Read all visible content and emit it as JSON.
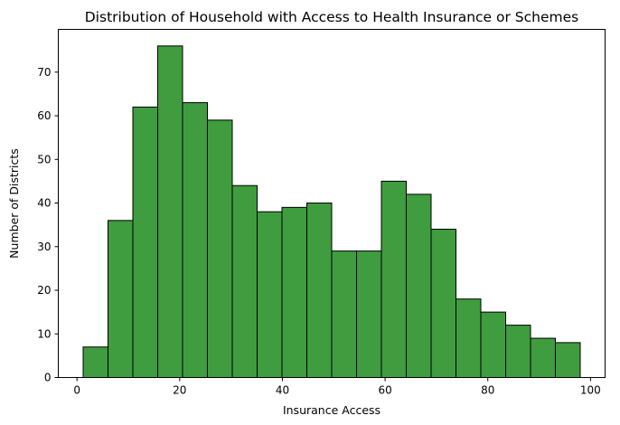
{
  "chart_data": {
    "type": "bar",
    "title": "Distribution of Household with Access to Health Insurance or Schemes",
    "xlabel": "Insurance Access",
    "ylabel": "Number of Districts",
    "bin_edges": [
      1.2,
      6.04,
      10.88,
      15.72,
      20.56,
      25.4,
      30.24,
      35.08,
      39.92,
      44.76,
      49.6,
      54.44,
      59.28,
      64.12,
      68.96,
      73.8,
      78.64,
      83.48,
      88.32,
      93.16,
      98.0
    ],
    "values": [
      7,
      36,
      62,
      76,
      63,
      59,
      44,
      38,
      39,
      40,
      29,
      29,
      45,
      42,
      34,
      18,
      15,
      12,
      9,
      8
    ],
    "xlim": [
      -3.64,
      102.84
    ],
    "ylim": [
      0,
      79.8
    ],
    "xticks": [
      0,
      20,
      40,
      60,
      80,
      100
    ],
    "yticks": [
      0,
      10,
      20,
      30,
      40,
      50,
      60,
      70
    ],
    "grid": false,
    "bar_color": "#3f9c3f",
    "edge_color": "#000000"
  }
}
